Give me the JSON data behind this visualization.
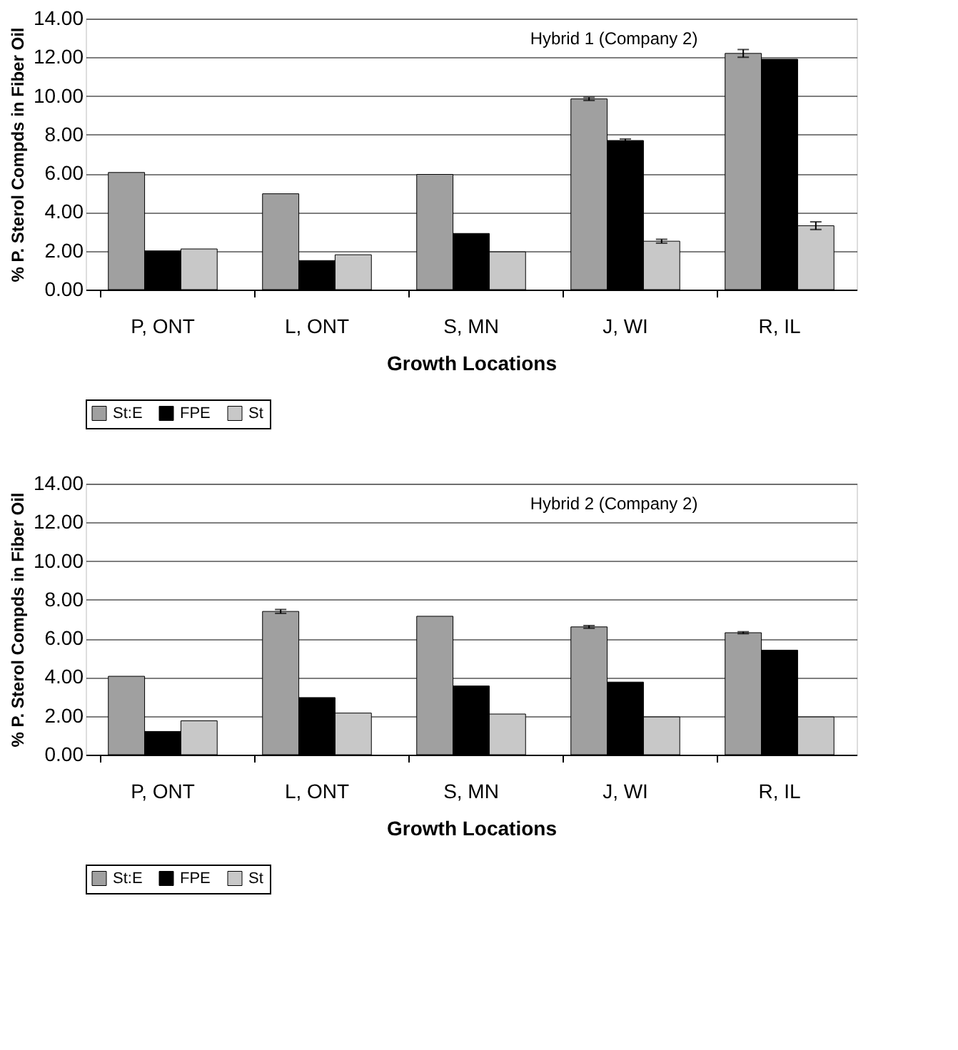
{
  "chart_data": [
    {
      "type": "bar",
      "annotations": [
        "Hybrid 1 (Company 2)"
      ],
      "xlabel": "Growth Locations",
      "ylabel": "% P. Sterol Compds in Fiber Oil",
      "categories": [
        "P, ONT",
        "L, ONT",
        "S, MN",
        "J, WI",
        "R, IL"
      ],
      "series": [
        {
          "name": "St:E",
          "color": "#a0a0a0",
          "values": [
            6.05,
            4.95,
            5.95,
            9.85,
            12.2
          ],
          "errors": [
            null,
            null,
            null,
            0.08,
            0.2
          ]
        },
        {
          "name": "FPE",
          "color": "#000000",
          "values": [
            2.0,
            1.5,
            2.9,
            7.7,
            11.9
          ],
          "errors": [
            null,
            null,
            null,
            0.08,
            null
          ]
        },
        {
          "name": "St",
          "color": "#c8c8c8",
          "values": [
            2.1,
            1.8,
            1.95,
            2.5,
            3.3
          ],
          "errors": [
            null,
            null,
            null,
            0.1,
            0.2
          ]
        }
      ],
      "ylim": [
        0,
        14
      ],
      "yticks": [
        {
          "value": 0,
          "label": "0.00"
        },
        {
          "value": 2,
          "label": "2.00"
        },
        {
          "value": 4,
          "label": "4.00"
        },
        {
          "value": 6,
          "label": "6.00"
        },
        {
          "value": 8,
          "label": "8.00"
        },
        {
          "value": 10,
          "label": "10.00"
        },
        {
          "value": 12,
          "label": "12.00"
        },
        {
          "value": 14,
          "label": "14.00"
        }
      ],
      "grid": "y",
      "legend": "bottom"
    },
    {
      "type": "bar",
      "annotations": [
        "Hybrid 2 (Company 2)"
      ],
      "xlabel": "Growth Locations",
      "ylabel": "% P. Sterol Compds in Fiber Oil",
      "categories": [
        "P, ONT",
        "L, ONT",
        "S, MN",
        "J, WI",
        "R, IL"
      ],
      "series": [
        {
          "name": "St:E",
          "color": "#a0a0a0",
          "values": [
            4.05,
            7.4,
            7.15,
            6.6,
            6.3
          ],
          "errors": [
            null,
            0.1,
            null,
            0.07,
            0.05
          ]
        },
        {
          "name": "FPE",
          "color": "#000000",
          "values": [
            1.2,
            2.95,
            3.55,
            3.75,
            5.4
          ]
        },
        {
          "name": "St",
          "color": "#c8c8c8",
          "values": [
            1.75,
            2.15,
            2.1,
            1.95,
            1.95
          ]
        }
      ],
      "ylim": [
        0,
        14
      ],
      "yticks": [
        {
          "value": 0,
          "label": "0.00"
        },
        {
          "value": 2,
          "label": "2.00"
        },
        {
          "value": 4,
          "label": "4.00"
        },
        {
          "value": 6,
          "label": "6.00"
        },
        {
          "value": 8,
          "label": "8.00"
        },
        {
          "value": 10,
          "label": "10.00"
        },
        {
          "value": 12,
          "label": "12.00"
        },
        {
          "value": 14,
          "label": "14.00"
        }
      ],
      "grid": "y",
      "legend": "bottom"
    }
  ]
}
